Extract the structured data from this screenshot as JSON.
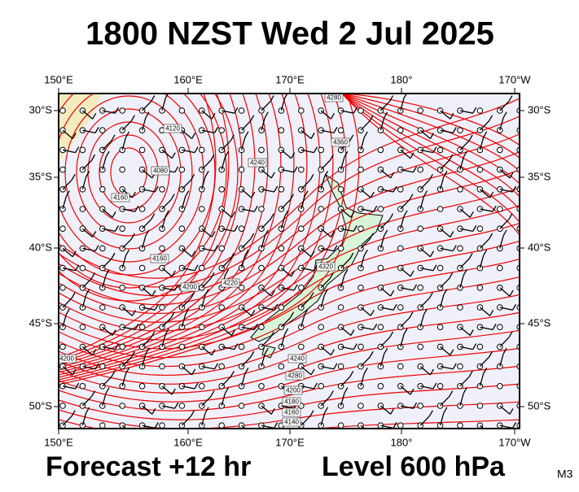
{
  "header": {
    "title": "1800 NZST Wed 2 Jul 2025"
  },
  "map": {
    "lon_labels": [
      "150°E",
      "160°E",
      "170°E",
      "180°",
      "170°W"
    ],
    "lat_labels": [
      "30°S",
      "35°S",
      "40°S",
      "45°S",
      "50°S"
    ],
    "contour_labels": [
      "4120",
      "4080",
      "4160",
      "4160",
      "4200",
      "4220",
      "4240",
      "4280",
      "4320",
      "4360",
      "4200",
      "4240",
      "4280",
      "4200",
      "4180",
      "4160",
      "4140"
    ]
  },
  "footer": {
    "forecast": "Forecast +12 hr",
    "level": "Level 600 hPa",
    "code": "M3"
  }
}
